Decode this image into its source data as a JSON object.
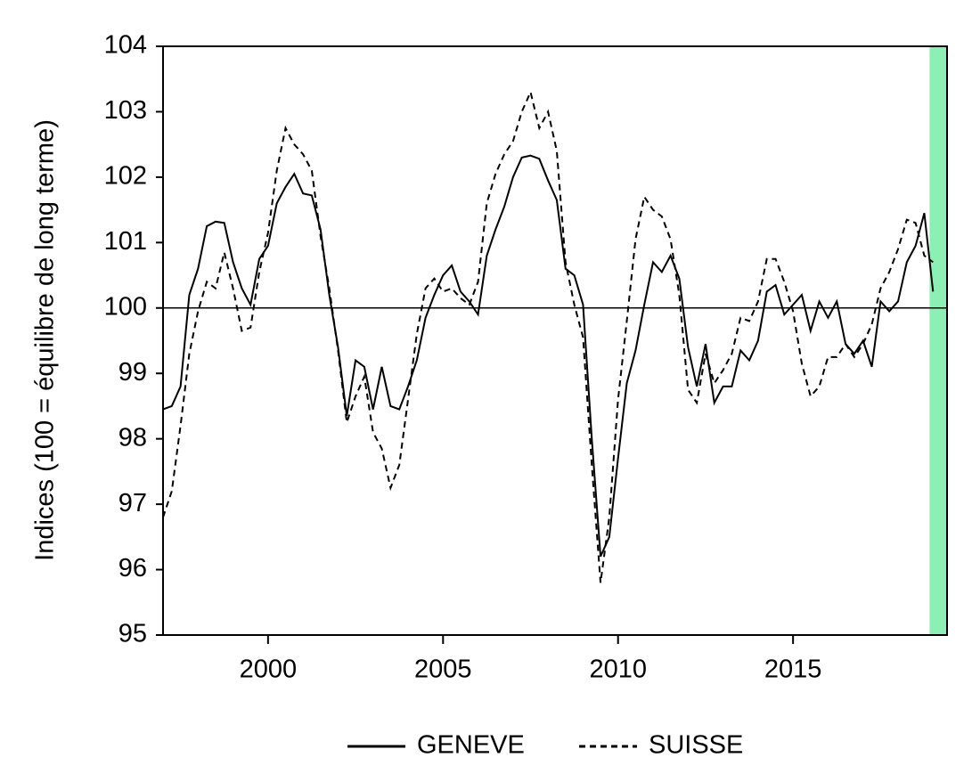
{
  "chart_data": {
    "type": "line",
    "y_label": "Indices (100 = équilibre de long terme)",
    "x": [
      1997,
      1997.25,
      1997.5,
      1997.75,
      1998,
      1998.25,
      1998.5,
      1998.75,
      1999,
      1999.25,
      1999.5,
      1999.75,
      2000,
      2000.25,
      2000.5,
      2000.75,
      2001,
      2001.25,
      2001.5,
      2001.75,
      2002,
      2002.25,
      2002.5,
      2002.75,
      2003,
      2003.25,
      2003.5,
      2003.75,
      2004,
      2004.25,
      2004.5,
      2004.75,
      2005,
      2005.25,
      2005.5,
      2005.75,
      2006,
      2006.25,
      2006.5,
      2006.75,
      2007,
      2007.25,
      2007.5,
      2007.75,
      2008,
      2008.25,
      2008.5,
      2008.75,
      2009,
      2009.25,
      2009.5,
      2009.75,
      2010,
      2010.25,
      2010.5,
      2010.75,
      2011,
      2011.25,
      2011.5,
      2011.75,
      2012,
      2012.25,
      2012.5,
      2012.75,
      2013,
      2013.25,
      2013.5,
      2013.75,
      2014,
      2014.25,
      2014.5,
      2014.75,
      2015,
      2015.25,
      2015.5,
      2015.75,
      2016,
      2016.25,
      2016.5,
      2016.75,
      2017,
      2017.25,
      2017.5,
      2017.75,
      2018,
      2018.25,
      2018.5,
      2018.75,
      2019
    ],
    "series": [
      {
        "name": "GENEVE",
        "color": "#000000",
        "dash": "solid",
        "values": [
          98.45,
          98.5,
          98.8,
          100.2,
          100.6,
          101.25,
          101.32,
          101.3,
          100.7,
          100.3,
          100.05,
          100.75,
          100.95,
          101.6,
          101.85,
          102.05,
          101.75,
          101.72,
          101.2,
          100.2,
          99.4,
          98.35,
          99.2,
          99.1,
          98.45,
          99.1,
          98.5,
          98.45,
          98.8,
          99.2,
          99.85,
          100.2,
          100.5,
          100.65,
          100.25,
          100.1,
          99.9,
          100.8,
          101.2,
          101.55,
          102.0,
          102.3,
          102.33,
          102.28,
          101.95,
          101.65,
          100.6,
          100.5,
          100.05,
          98.0,
          96.2,
          96.5,
          97.7,
          98.85,
          99.35,
          100.05,
          100.7,
          100.55,
          100.8,
          100.45,
          99.4,
          98.8,
          99.45,
          98.55,
          98.8,
          98.8,
          99.35,
          99.2,
          99.5,
          100.25,
          100.35,
          99.9,
          100.05,
          100.2,
          99.65,
          100.1,
          99.85,
          100.1,
          99.45,
          99.3,
          99.5,
          99.1,
          100.1,
          99.95,
          100.1,
          100.7,
          100.95,
          101.45,
          100.25
        ]
      },
      {
        "name": "SUISSE",
        "color": "#000000",
        "dash": "dashed",
        "values": [
          96.8,
          97.2,
          98.2,
          99.3,
          99.95,
          100.4,
          100.3,
          100.85,
          100.3,
          99.65,
          99.7,
          100.55,
          101.15,
          102.1,
          102.75,
          102.5,
          102.35,
          102.1,
          101.1,
          100.3,
          99.35,
          98.25,
          98.65,
          98.95,
          98.1,
          97.85,
          97.25,
          97.6,
          98.6,
          99.6,
          100.3,
          100.45,
          100.25,
          100.3,
          100.15,
          100.05,
          100.4,
          101.6,
          102.05,
          102.35,
          102.55,
          103.0,
          103.3,
          102.75,
          103.0,
          102.4,
          100.7,
          100.05,
          99.55,
          97.6,
          95.8,
          96.8,
          98.6,
          99.8,
          101.05,
          101.7,
          101.5,
          101.4,
          101.05,
          100.2,
          98.75,
          98.55,
          99.3,
          98.85,
          99.05,
          99.3,
          99.85,
          99.8,
          100.1,
          100.75,
          100.75,
          100.4,
          99.95,
          99.15,
          98.65,
          98.8,
          99.25,
          99.25,
          99.45,
          99.25,
          99.45,
          99.75,
          100.3,
          100.55,
          100.9,
          101.35,
          101.3,
          100.8,
          100.7
        ]
      }
    ],
    "xlim": [
      1997,
      2019.4
    ],
    "xticks": [
      2000,
      2005,
      2010,
      2015
    ],
    "ylim": [
      95,
      104
    ],
    "yticks": [
      95,
      96,
      97,
      98,
      99,
      100,
      101,
      102,
      103,
      104
    ],
    "reference_line": 100,
    "shaded_region": {
      "from": 2018.9,
      "to": 2019.4,
      "color": "#8cf0b4"
    },
    "legend": "bottom"
  }
}
